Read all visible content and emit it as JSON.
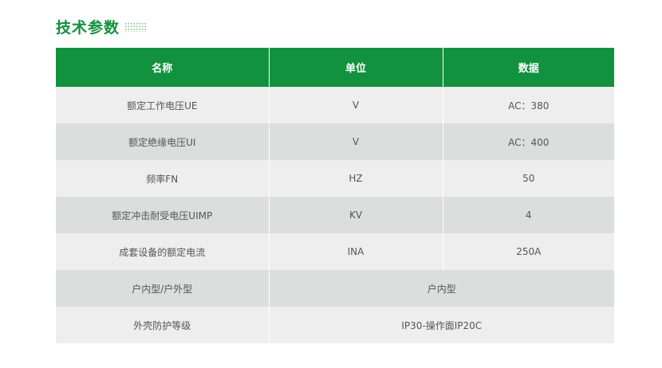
{
  "title": "技术参数",
  "colors": {
    "accent": "#12913f",
    "row_light": "#eeeeee",
    "row_dark": "#dcdddd"
  },
  "table": {
    "headers": [
      "名称",
      "单位",
      "数据"
    ],
    "rows": [
      [
        "额定工作电压UE",
        "V",
        "AC：380"
      ],
      [
        "额定绝缘电压UI",
        "V",
        "AC：400"
      ],
      [
        "频率FN",
        "HZ",
        "50"
      ],
      [
        "额定冲击耐受电压UIMP",
        "KV",
        "4"
      ],
      [
        "成套设备的额定电流",
        "INA",
        "250A"
      ]
    ],
    "merged_rows": [
      [
        "户内型/户外型",
        "户内型"
      ],
      [
        "外壳防护等级",
        "IP30-操作面IP20C"
      ]
    ]
  }
}
